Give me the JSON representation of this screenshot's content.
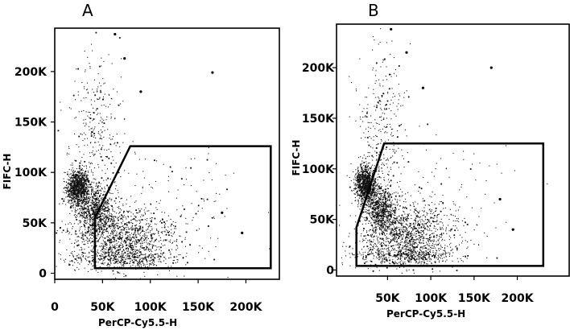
{
  "chart_data": [
    {
      "panel": "A",
      "type": "scatter",
      "xlabel": "PerCP-Cy5.5-H",
      "ylabel": "FIFC-H",
      "xticks": [
        {
          "value": 0,
          "label": "0"
        },
        {
          "value": 50000,
          "label": "50K"
        },
        {
          "value": 100000,
          "label": "100K"
        },
        {
          "value": 150000,
          "label": "150K"
        },
        {
          "value": 200000,
          "label": "200K"
        }
      ],
      "yticks": [
        {
          "value": 0,
          "label": "0"
        },
        {
          "value": 50000,
          "label": "50K"
        },
        {
          "value": 100000,
          "label": "100K"
        },
        {
          "value": 150000,
          "label": "150K"
        },
        {
          "value": 200000,
          "label": "200K"
        }
      ],
      "xlim": [
        0,
        235000
      ],
      "ylim": [
        -6000,
        243000
      ],
      "gate_polygon": [
        [
          42000,
          5000
        ],
        [
          42000,
          55000
        ],
        [
          79000,
          126000
        ],
        [
          226000,
          126000
        ],
        [
          226000,
          5000
        ]
      ],
      "clusters": [
        {
          "cx": 24000,
          "cy": 85000,
          "sx": 6000,
          "sy": 9000,
          "n": 950
        },
        {
          "cx": 42000,
          "cy": 62000,
          "sx": 9000,
          "sy": 12000,
          "n": 650
        },
        {
          "cx": 70000,
          "cy": 35000,
          "sx": 28000,
          "sy": 15000,
          "n": 1100
        },
        {
          "cx": 70000,
          "cy": 15000,
          "sx": 30000,
          "sy": 5000,
          "n": 400
        },
        {
          "cx": 42000,
          "cy": 140000,
          "sx": 14000,
          "sy": 40000,
          "n": 300
        },
        {
          "cx": 110000,
          "cy": 65000,
          "sx": 45000,
          "sy": 35000,
          "n": 150
        }
      ],
      "points": [
        [
          63000,
          237000
        ],
        [
          165000,
          199000
        ],
        [
          196000,
          40000
        ],
        [
          175000,
          60000
        ],
        [
          73000,
          213000
        ],
        [
          90000,
          180000
        ]
      ]
    },
    {
      "panel": "B",
      "type": "scatter",
      "xlabel": "PerCP-Cy5.5-H",
      "ylabel": "FIFC-H",
      "xticks": [
        {
          "value": 50000,
          "label": "50K"
        },
        {
          "value": 100000,
          "label": "100K"
        },
        {
          "value": 150000,
          "label": "150K"
        },
        {
          "value": 200000,
          "label": "200K"
        }
      ],
      "yticks": [
        {
          "value": 0,
          "label": "0"
        },
        {
          "value": 50000,
          "label": "50K"
        },
        {
          "value": 100000,
          "label": "100K"
        },
        {
          "value": 150000,
          "label": "150K"
        },
        {
          "value": 200000,
          "label": "200K"
        }
      ],
      "xlim": [
        -9000,
        260000
      ],
      "ylim": [
        -6000,
        243000
      ],
      "gate_polygon": [
        [
          14000,
          4000
        ],
        [
          14000,
          42000
        ],
        [
          46000,
          125000
        ],
        [
          230000,
          125000
        ],
        [
          230000,
          4000
        ]
      ],
      "clusters": [
        {
          "cx": 24000,
          "cy": 85000,
          "sx": 6000,
          "sy": 9000,
          "n": 950
        },
        {
          "cx": 42000,
          "cy": 62000,
          "sx": 9000,
          "sy": 12000,
          "n": 650
        },
        {
          "cx": 70000,
          "cy": 35000,
          "sx": 28000,
          "sy": 15000,
          "n": 1100
        },
        {
          "cx": 70000,
          "cy": 15000,
          "sx": 30000,
          "sy": 5000,
          "n": 400
        },
        {
          "cx": 42000,
          "cy": 140000,
          "sx": 14000,
          "sy": 40000,
          "n": 300
        },
        {
          "cx": 110000,
          "cy": 65000,
          "sx": 45000,
          "sy": 35000,
          "n": 150
        }
      ],
      "points": [
        [
          54000,
          238000
        ],
        [
          170000,
          200000
        ],
        [
          195000,
          40000
        ],
        [
          180000,
          70000
        ],
        [
          72000,
          215000
        ],
        [
          91000,
          180000
        ]
      ]
    }
  ]
}
